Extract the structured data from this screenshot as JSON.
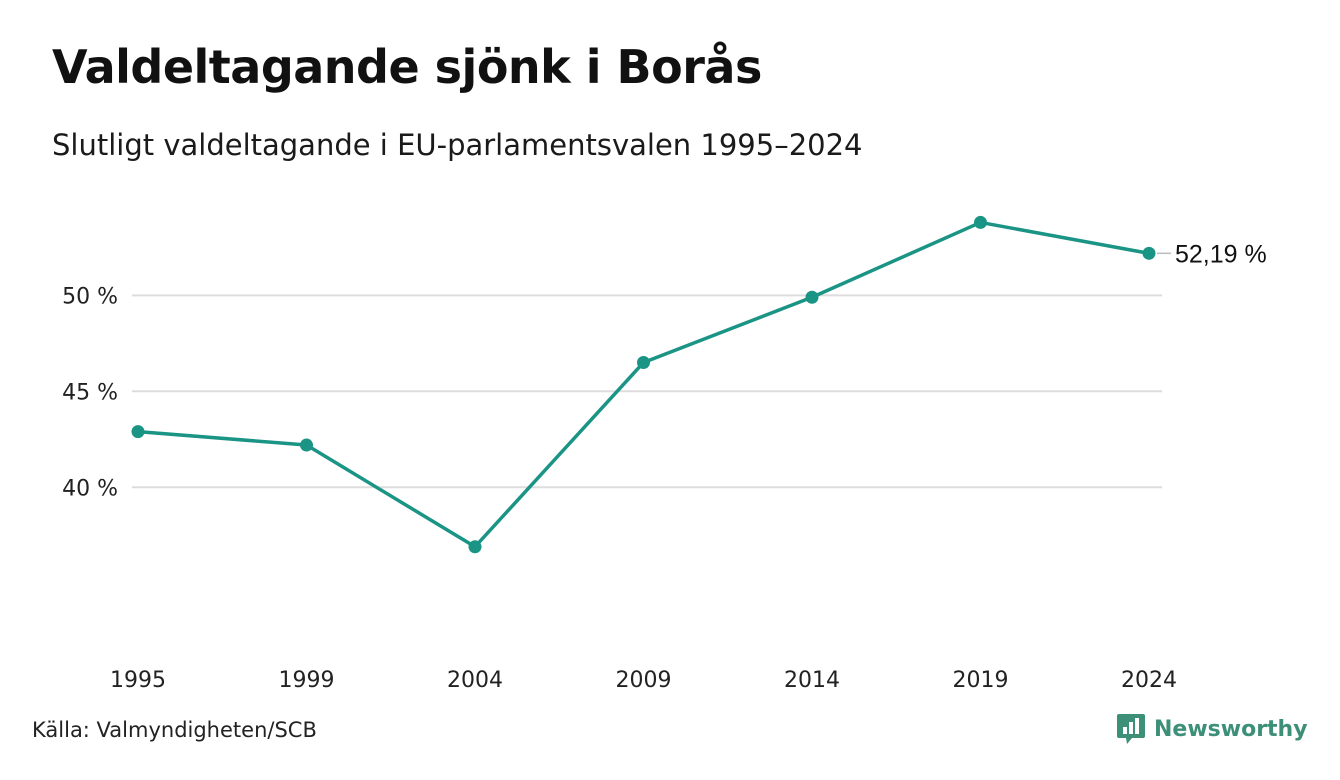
{
  "title": "Valdeltagande sjönk i Borås",
  "subtitle": "Slutligt valdeltagande i EU-parlamentsvalen 1995–2024",
  "source": "Källa: Valmyndigheten/SCB",
  "brand": {
    "name": "Newsworthy",
    "icon": "newsworthy-logo-icon",
    "color": "#3d8f78"
  },
  "colors": {
    "line": "#1a9484",
    "grid": "#dddddd"
  },
  "chart_data": {
    "type": "line",
    "x": [
      "1995",
      "1999",
      "2004",
      "2009",
      "2014",
      "2019",
      "2024"
    ],
    "series": [
      {
        "values": [
          42.9,
          42.2,
          36.9,
          46.5,
          49.9,
          53.8,
          52.19
        ]
      }
    ],
    "ylim": [
      33.5,
      54.5
    ],
    "yticks": [
      40,
      45,
      50
    ],
    "ytick_labels": [
      "40 %",
      "45 %",
      "50 %"
    ],
    "end_label": "52,19 %",
    "grid": true,
    "xlabel": "",
    "ylabel": ""
  }
}
